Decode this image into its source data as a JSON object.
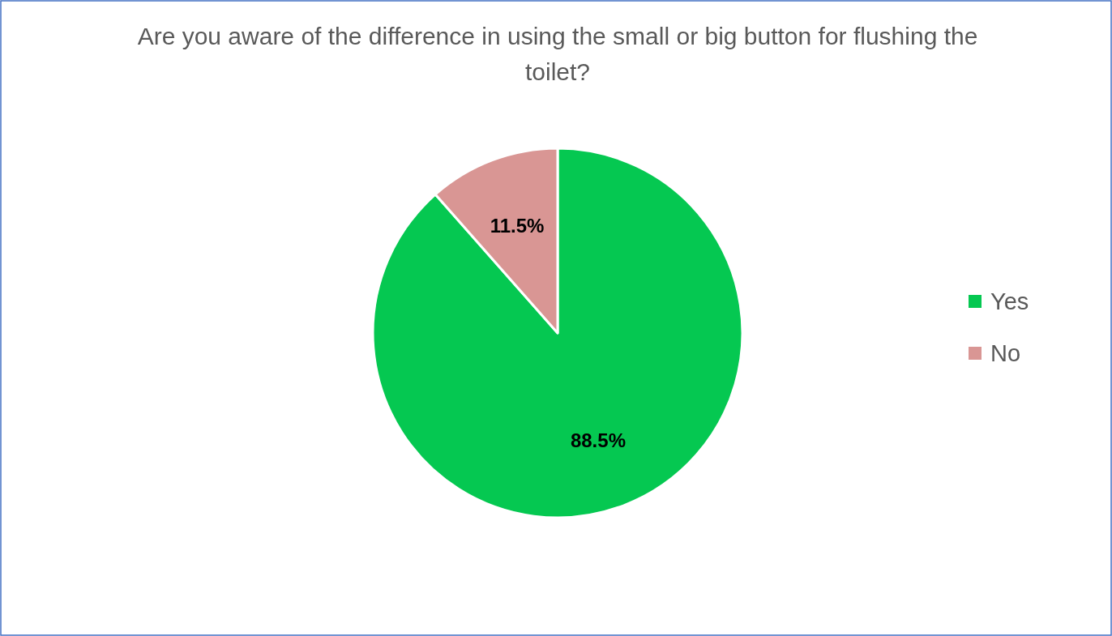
{
  "chart_data": {
    "type": "pie",
    "title": "Are you aware of the difference in using the small or big button for flushing the toilet?",
    "categories": [
      "Yes",
      "No"
    ],
    "values": [
      88.5,
      11.5
    ],
    "colors": [
      "#05c851",
      "#d99694"
    ],
    "value_labels": [
      "88.5%",
      "11.5%"
    ],
    "legend": "right"
  }
}
